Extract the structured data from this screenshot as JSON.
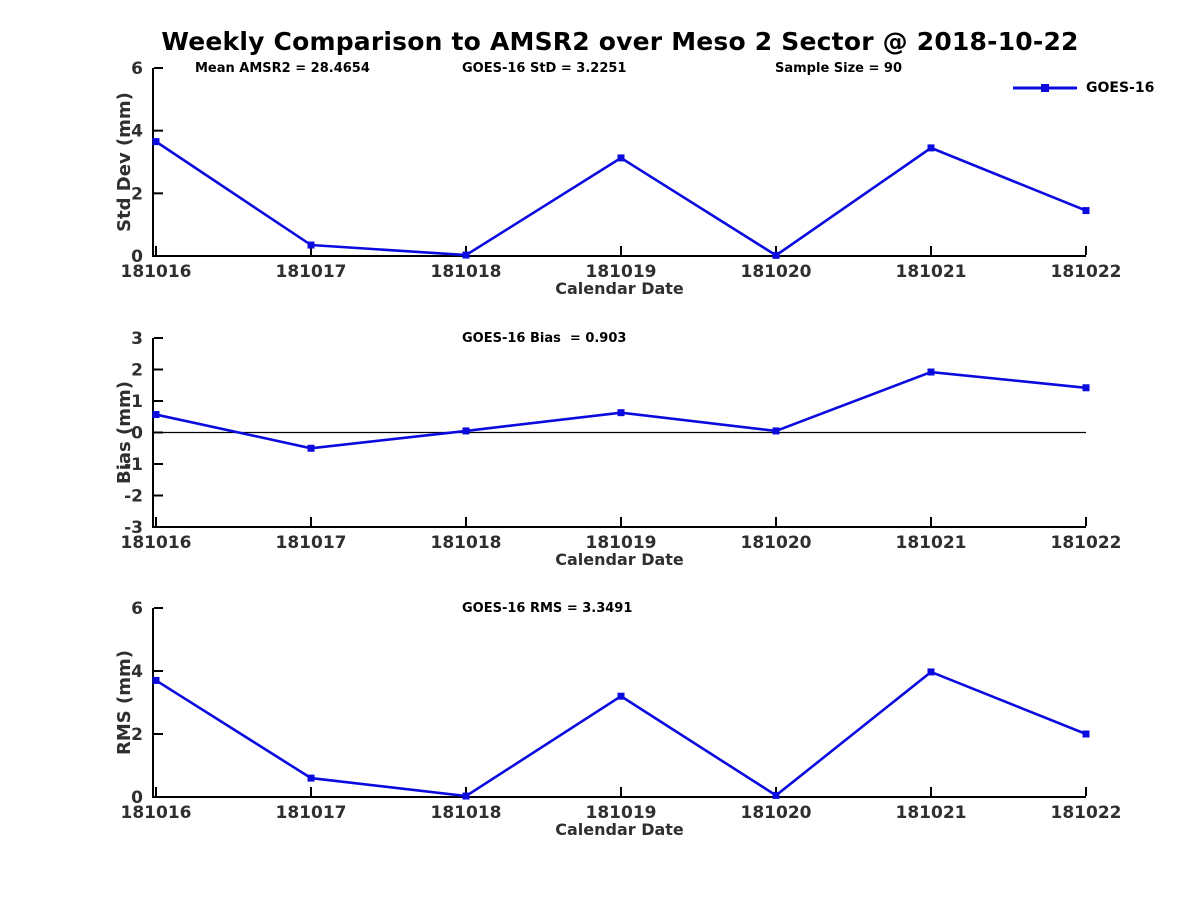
{
  "page": {
    "title": "Weekly Comparison to AMSR2 over Meso 2 Sector @ 2018-10-22",
    "background_color": "#ffffff"
  },
  "style": {
    "line_color": "#0b0bdf",
    "axis_color": "#000000",
    "tick_label_color": "#2f2f2f",
    "annotation_color": "#000000"
  },
  "legend": {
    "label": "GOES-16",
    "marker": "filled-square",
    "position": "top-right-of-first-subplot"
  },
  "chart_data": [
    {
      "type": "line",
      "series_name": "GOES-16",
      "ylabel": "Std Dev (mm)",
      "xlabel": "Calendar Date",
      "ylim": [
        0,
        6
      ],
      "yticks": [
        0,
        2,
        4,
        6
      ],
      "categories": [
        "181016",
        "181017",
        "181018",
        "181019",
        "181020",
        "181021",
        "181022"
      ],
      "values": [
        3.65,
        0.35,
        0.03,
        3.13,
        0.02,
        3.45,
        1.45
      ],
      "annotations": [
        "Mean AMSR2 = 28.4654",
        "GOES-16 StD = 3.2251",
        "Sample Size = 90"
      ],
      "zero_line": false,
      "grid": false,
      "marker": "square"
    },
    {
      "type": "line",
      "series_name": "GOES-16",
      "ylabel": "Bias (mm)",
      "xlabel": "Calendar Date",
      "ylim": [
        -3,
        3
      ],
      "yticks": [
        -3,
        -2,
        -1,
        0,
        1,
        2,
        3
      ],
      "categories": [
        "181016",
        "181017",
        "181018",
        "181019",
        "181020",
        "181021",
        "181022"
      ],
      "values": [
        0.57,
        -0.5,
        0.05,
        0.63,
        0.05,
        1.92,
        1.42
      ],
      "annotations": [
        "GOES-16 Bias  = 0.903"
      ],
      "zero_line": true,
      "grid": false,
      "marker": "square"
    },
    {
      "type": "line",
      "series_name": "GOES-16",
      "ylabel": "RMS (mm)",
      "xlabel": "Calendar Date",
      "ylim": [
        0,
        6
      ],
      "yticks": [
        0,
        2,
        4,
        6
      ],
      "categories": [
        "181016",
        "181017",
        "181018",
        "181019",
        "181020",
        "181021",
        "181022"
      ],
      "values": [
        3.7,
        0.6,
        0.03,
        3.2,
        0.05,
        3.97,
        2.0
      ],
      "annotations": [
        "GOES-16 RMS = 3.3491"
      ],
      "zero_line": false,
      "grid": false,
      "marker": "square"
    }
  ]
}
